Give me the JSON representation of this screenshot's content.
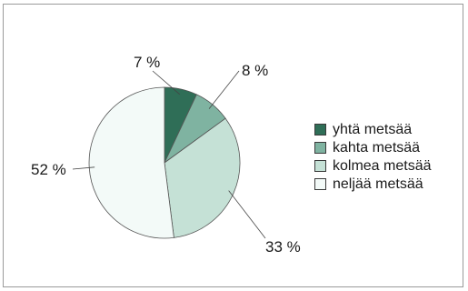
{
  "chart_data": {
    "type": "pie",
    "categories": [
      "yhtä metsää",
      "kahta metsää",
      "kolmea metsää",
      "neljää metsää"
    ],
    "values": [
      7,
      8,
      33,
      52
    ],
    "value_labels": [
      "7 %",
      "8 %",
      "33 %",
      "52 %"
    ],
    "colors": [
      "#2f6e57",
      "#7fb3a1",
      "#c5e1d6",
      "#f3faf8"
    ],
    "start_angle_deg": 0,
    "direction": "clockwise",
    "legend_position": "right",
    "edge_color": "#555555"
  }
}
